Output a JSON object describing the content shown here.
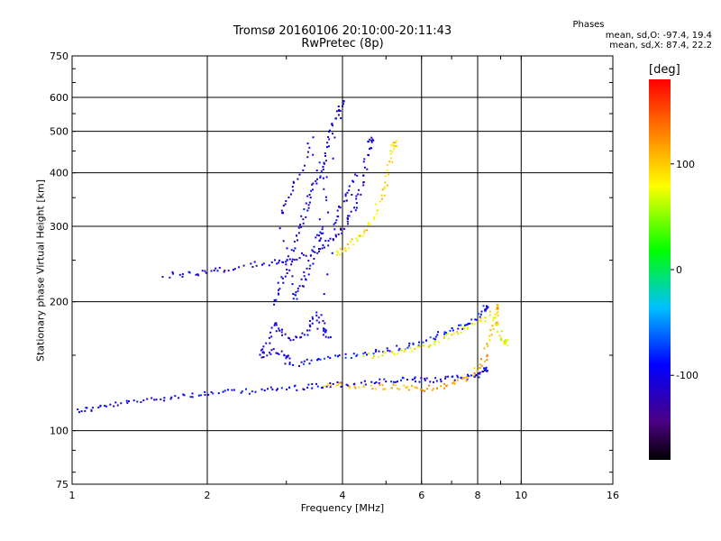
{
  "chart_data": {
    "type": "scatter",
    "title": "Tromsø 20160106 20:10:00-20:11:43",
    "subtitle": "RwPretec (8p)",
    "xlabel": "Frequency [MHz]",
    "ylabel": "Stationary phase Virtual Height [km]",
    "x_scale": "log",
    "y_scale": "log",
    "xlim": [
      1,
      16
    ],
    "ylim": [
      75,
      750
    ],
    "x_ticks": [
      1,
      2,
      4,
      6,
      8,
      10,
      16
    ],
    "x_tick_labels": [
      "1",
      "2",
      "4",
      "6",
      "8",
      "10",
      "16"
    ],
    "y_ticks": [
      75,
      100,
      200,
      300,
      400,
      500,
      600,
      750
    ],
    "y_tick_labels": [
      "75",
      "100",
      "200",
      "300",
      "400",
      "500",
      "600",
      "750"
    ],
    "grid": true,
    "legend": {
      "title": "Phases",
      "lines": [
        "mean, sd,O: -97.4, 19.4",
        "mean, sd,X:  87.4, 22.2"
      ],
      "position": "top-right"
    },
    "colorbar": {
      "label": "[deg]",
      "range": [
        -180,
        180
      ],
      "ticks": [
        100,
        0,
        -100
      ],
      "tick_labels": [
        "100",
        "0",
        "-100"
      ],
      "colormap": "rainbow"
    },
    "traces": [
      {
        "id": "E-layer O trace",
        "phase": -100,
        "points": [
          [
            1.02,
            112
          ],
          [
            1.1,
            113
          ],
          [
            1.2,
            115
          ],
          [
            1.35,
            117
          ],
          [
            1.5,
            119
          ],
          [
            1.7,
            121
          ],
          [
            1.9,
            122
          ],
          [
            2.1,
            123
          ],
          [
            2.4,
            124
          ],
          [
            2.7,
            125
          ],
          [
            3.0,
            126
          ],
          [
            3.3,
            127
          ],
          [
            3.6,
            128
          ],
          [
            4.0,
            129
          ],
          [
            4.5,
            130
          ],
          [
            5.0,
            131
          ],
          [
            5.5,
            132
          ],
          [
            6.0,
            132
          ],
          [
            6.5,
            132
          ],
          [
            7.0,
            133
          ],
          [
            7.5,
            134
          ],
          [
            8.0,
            136
          ],
          [
            8.3,
            140
          ]
        ]
      },
      {
        "id": "E-layer X trace",
        "phase": 110,
        "points": [
          [
            3.6,
            128
          ],
          [
            4.0,
            128
          ],
          [
            4.5,
            127
          ],
          [
            5.0,
            127
          ],
          [
            5.5,
            127
          ],
          [
            6.0,
            126
          ],
          [
            6.5,
            127
          ],
          [
            7.0,
            129
          ],
          [
            7.5,
            133
          ],
          [
            8.0,
            140
          ],
          [
            8.3,
            150
          ],
          [
            8.5,
            165
          ],
          [
            8.7,
            180
          ],
          [
            8.8,
            195
          ]
        ]
      },
      {
        "id": "F1 O trace",
        "phase": -90,
        "points": [
          [
            3.0,
            142
          ],
          [
            3.3,
            145
          ],
          [
            3.6,
            148
          ],
          [
            4.0,
            150
          ],
          [
            4.5,
            152
          ],
          [
            5.0,
            155
          ],
          [
            5.5,
            158
          ],
          [
            6.0,
            162
          ],
          [
            6.5,
            168
          ],
          [
            7.0,
            172
          ],
          [
            7.5,
            178
          ],
          [
            8.0,
            185
          ],
          [
            8.3,
            195
          ]
        ]
      },
      {
        "id": "F1 X trace",
        "phase": 80,
        "points": [
          [
            4.5,
            150
          ],
          [
            5.0,
            152
          ],
          [
            5.5,
            155
          ],
          [
            6.0,
            158
          ],
          [
            6.5,
            163
          ],
          [
            7.0,
            168
          ],
          [
            7.5,
            174
          ],
          [
            8.0,
            180
          ],
          [
            8.5,
            188
          ],
          [
            9.0,
            170
          ],
          [
            9.2,
            160
          ]
        ]
      },
      {
        "id": "F-layer O trace",
        "phase": -110,
        "points": [
          [
            1.6,
            232
          ],
          [
            1.8,
            233
          ],
          [
            2.0,
            236
          ],
          [
            2.2,
            240
          ],
          [
            2.5,
            245
          ],
          [
            2.8,
            248
          ],
          [
            3.0,
            252
          ],
          [
            3.3,
            258
          ],
          [
            3.5,
            265
          ],
          [
            3.7,
            275
          ],
          [
            3.9,
            290
          ],
          [
            4.1,
            310
          ],
          [
            4.3,
            340
          ],
          [
            4.4,
            380
          ],
          [
            4.5,
            430
          ],
          [
            4.6,
            480
          ]
        ]
      },
      {
        "id": "F-layer X trace",
        "phase": 90,
        "points": [
          [
            3.8,
            260
          ],
          [
            4.0,
            265
          ],
          [
            4.2,
            275
          ],
          [
            4.4,
            290
          ],
          [
            4.6,
            310
          ],
          [
            4.8,
            340
          ],
          [
            5.0,
            380
          ],
          [
            5.1,
            430
          ],
          [
            5.2,
            470
          ]
        ]
      },
      {
        "id": "Spread F cluster",
        "phase": -105,
        "points": [
          [
            2.8,
            200
          ],
          [
            2.9,
            220
          ],
          [
            3.0,
            240
          ],
          [
            3.1,
            270
          ],
          [
            3.2,
            300
          ],
          [
            3.3,
            330
          ],
          [
            3.4,
            360
          ],
          [
            3.5,
            390
          ],
          [
            3.6,
            420
          ],
          [
            3.7,
            470
          ],
          [
            3.8,
            520
          ],
          [
            3.9,
            560
          ],
          [
            4.0,
            600
          ],
          [
            3.5,
            280
          ],
          [
            3.6,
            300
          ],
          [
            3.4,
            250
          ],
          [
            3.3,
            230
          ],
          [
            3.2,
            215
          ],
          [
            3.1,
            205
          ],
          [
            2.9,
            320
          ],
          [
            3.0,
            350
          ],
          [
            3.2,
            400
          ],
          [
            3.4,
            480
          ],
          [
            3.8,
            300
          ],
          [
            3.9,
            330
          ],
          [
            4.1,
            360
          ],
          [
            4.3,
            400
          ],
          [
            3.5,
            190
          ],
          [
            3.6,
            175
          ],
          [
            3.7,
            165
          ],
          [
            3.4,
            185
          ],
          [
            3.3,
            170
          ],
          [
            3.1,
            165
          ],
          [
            2.9,
            170
          ],
          [
            2.8,
            180
          ],
          [
            2.7,
            160
          ],
          [
            2.6,
            150
          ],
          [
            2.8,
            155
          ],
          [
            3.0,
            150
          ]
        ]
      }
    ]
  }
}
